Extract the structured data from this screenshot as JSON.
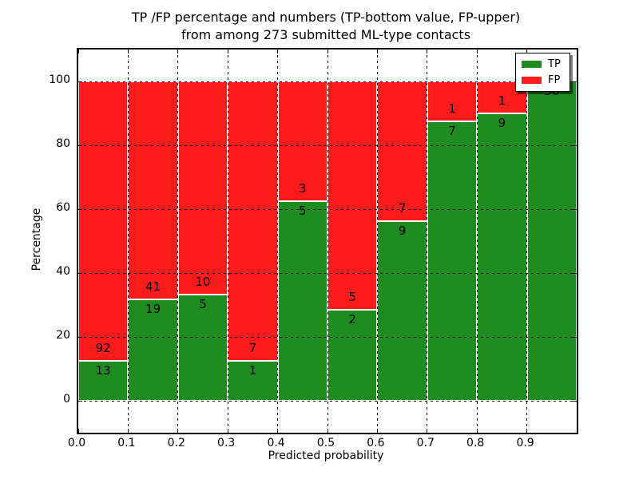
{
  "chart_data": {
    "type": "bar",
    "stacked": true,
    "title": "TP /FP percentage and numbers (TP-bottom value, FP-upper) from among 273 submitted ML-type contacts",
    "title_line1": "TP /FP percentage and numbers (TP-bottom value, FP-upper)",
    "title_line2": "from among 273 submitted ML-type contacts",
    "xlabel": "Predicted probability",
    "ylabel": "Percentage",
    "total_contacts": 273,
    "xlim": [
      0.0,
      1.0
    ],
    "ylim": [
      -10,
      110
    ],
    "bin_width": 0.1,
    "bin_starts": [
      0.0,
      0.1,
      0.2,
      0.3,
      0.4,
      0.5,
      0.6,
      0.7,
      0.8,
      0.9
    ],
    "x_tick_labels": [
      "0.0",
      "0.1",
      "0.2",
      "0.3",
      "0.4",
      "0.5",
      "0.6",
      "0.7",
      "0.8",
      "0.9"
    ],
    "y_ticks": [
      0,
      20,
      40,
      60,
      80,
      100
    ],
    "grid": true,
    "grid_style": "dotted",
    "background_color": "#ffffff",
    "series": [
      {
        "name": "TP",
        "color": "#1e8c1e",
        "counts": [
          13,
          19,
          5,
          1,
          5,
          2,
          9,
          7,
          9,
          36
        ]
      },
      {
        "name": "FP",
        "color": "#fc1b1b",
        "counts": [
          92,
          41,
          10,
          7,
          3,
          5,
          7,
          1,
          1,
          0
        ]
      }
    ],
    "tp_percent": [
      12.38,
      31.67,
      33.33,
      12.5,
      62.5,
      28.57,
      56.25,
      87.5,
      90.0,
      100.0
    ],
    "legend": {
      "position": "upper right",
      "entries": [
        "TP",
        "FP"
      ]
    }
  }
}
